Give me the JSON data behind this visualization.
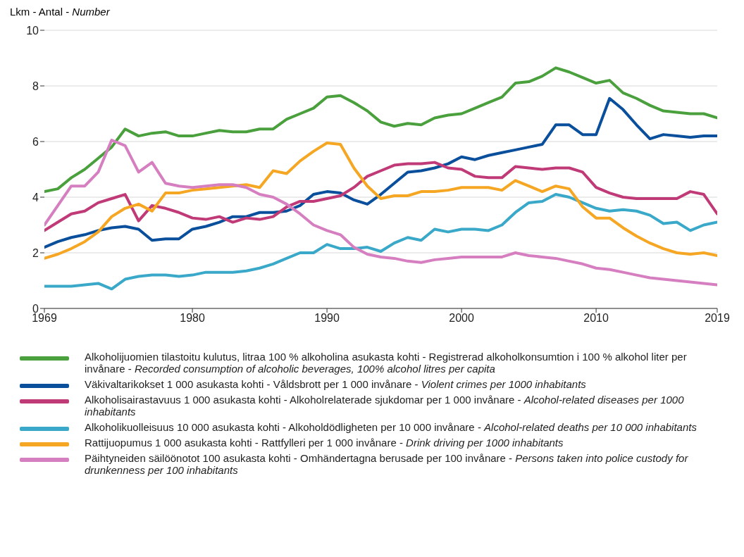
{
  "chart_data": {
    "type": "line",
    "ylabel": "Lkm - Antal - Number",
    "x": [
      1969,
      1970,
      1971,
      1972,
      1973,
      1974,
      1975,
      1976,
      1977,
      1978,
      1979,
      1980,
      1981,
      1982,
      1983,
      1984,
      1985,
      1986,
      1987,
      1988,
      1989,
      1990,
      1991,
      1992,
      1993,
      1994,
      1995,
      1996,
      1997,
      1998,
      1999,
      2000,
      2001,
      2002,
      2003,
      2004,
      2005,
      2006,
      2007,
      2008,
      2009,
      2010,
      2011,
      2012,
      2013,
      2014,
      2015,
      2016,
      2017,
      2018,
      2019
    ],
    "xlim": [
      1969,
      2019
    ],
    "xticks": [
      1969,
      1980,
      1990,
      2000,
      2010,
      2019
    ],
    "ylim": [
      0,
      10
    ],
    "yticks": [
      0,
      2,
      4,
      6,
      8,
      10
    ],
    "grid": "y",
    "legend": "bottom",
    "series": [
      {
        "name": "Alkoholijuomien tilastoitu kulutus, litraa 100 % alkoholina asukasta kohti - Registrerad alkoholkonsumtion i 100 % alkohol liter per invånare - Recorded consumption of alcoholic beverages, 100% alcohol litres per capita",
        "color": "#4aa03c",
        "values": [
          4.2,
          4.3,
          4.7,
          5.0,
          5.4,
          5.8,
          6.45,
          6.2,
          6.3,
          6.35,
          6.2,
          6.2,
          6.3,
          6.4,
          6.35,
          6.35,
          6.45,
          6.45,
          6.8,
          7.0,
          7.2,
          7.6,
          7.65,
          7.4,
          7.1,
          6.7,
          6.55,
          6.65,
          6.6,
          6.85,
          6.95,
          7.0,
          7.2,
          7.4,
          7.6,
          8.1,
          8.15,
          8.35,
          8.65,
          8.5,
          8.3,
          8.1,
          8.2,
          7.75,
          7.55,
          7.3,
          7.1,
          7.05,
          7.0,
          7.0,
          6.85
        ]
      },
      {
        "name": "Väkivaltarikokset 1 000 asukasta kohti - Våldsbrott per 1 000 invånare - Violent crimes per 1000 inhabitants",
        "color": "#0a4f9c",
        "values": [
          2.2,
          2.4,
          2.55,
          2.65,
          2.8,
          2.9,
          2.95,
          2.85,
          2.45,
          2.5,
          2.5,
          2.85,
          2.95,
          3.1,
          3.3,
          3.3,
          3.45,
          3.45,
          3.5,
          3.7,
          4.1,
          4.2,
          4.15,
          3.9,
          3.75,
          4.1,
          4.5,
          4.9,
          4.95,
          5.05,
          5.2,
          5.45,
          5.35,
          5.5,
          5.6,
          5.7,
          5.8,
          5.9,
          6.6,
          6.6,
          6.25,
          6.25,
          7.55,
          7.15,
          6.6,
          6.1,
          6.25,
          6.2,
          6.15,
          6.2,
          6.2
        ]
      },
      {
        "name": "Alkoholisairastavuus 1 000 asukasta kohti - Alkoholrelaterade sjukdomar per 1 000 invånare - Alcohol-related diseases per 1000 inhabitants",
        "color": "#c03a78",
        "values": [
          2.8,
          3.1,
          3.4,
          3.5,
          3.8,
          3.95,
          4.1,
          3.15,
          3.7,
          3.6,
          3.45,
          3.25,
          3.2,
          3.3,
          3.1,
          3.25,
          3.2,
          3.3,
          3.65,
          3.85,
          3.85,
          3.95,
          4.05,
          4.35,
          4.75,
          4.95,
          5.15,
          5.2,
          5.2,
          5.25,
          5.05,
          5.0,
          4.75,
          4.7,
          4.7,
          5.1,
          5.05,
          5.0,
          5.05,
          5.05,
          4.9,
          4.35,
          4.15,
          4.0,
          3.95,
          3.95,
          3.95,
          3.95,
          4.2,
          4.1,
          3.4
        ]
      },
      {
        "name": "Alkoholikuolleisuus 10 000 asukasta kohti - Alkoholdödligheten per 10 000 invånare - Alcohol-related deaths per 10 000 inhabitants",
        "color": "#3aa8c8",
        "values": [
          0.8,
          0.8,
          0.8,
          0.85,
          0.9,
          0.7,
          1.05,
          1.15,
          1.2,
          1.2,
          1.15,
          1.2,
          1.3,
          1.3,
          1.3,
          1.35,
          1.45,
          1.6,
          1.8,
          2.0,
          2.0,
          2.3,
          2.15,
          2.15,
          2.2,
          2.05,
          2.35,
          2.55,
          2.45,
          2.85,
          2.75,
          2.85,
          2.85,
          2.8,
          3.0,
          3.45,
          3.8,
          3.85,
          4.1,
          4.0,
          3.8,
          3.6,
          3.5,
          3.55,
          3.5,
          3.35,
          3.05,
          3.1,
          2.8,
          3.0,
          3.1
        ]
      },
      {
        "name": "Rattijuopumus 1 000 asukasta kohti - Rattfylleri per 1 000 invånare - Drink driving per 1000 inhabitants",
        "color": "#f5a623",
        "values": [
          1.8,
          1.95,
          2.15,
          2.4,
          2.75,
          3.3,
          3.6,
          3.75,
          3.5,
          4.15,
          4.15,
          4.25,
          4.3,
          4.35,
          4.4,
          4.45,
          4.35,
          4.95,
          4.85,
          5.3,
          5.65,
          5.95,
          5.9,
          5.05,
          4.4,
          3.95,
          4.05,
          4.05,
          4.2,
          4.2,
          4.25,
          4.35,
          4.35,
          4.35,
          4.25,
          4.6,
          4.4,
          4.2,
          4.4,
          4.3,
          3.65,
          3.25,
          3.25,
          2.9,
          2.6,
          2.35,
          2.15,
          2.0,
          1.95,
          2.0,
          1.9
        ]
      },
      {
        "name": "Päihtyneiden säilöönotot 100 asukasta kohti - Omhändertagna berusade per 100 invånare - Persons taken into police custody for drunkenness per 100 inhabitants",
        "color": "#d67fc0",
        "values": [
          3.0,
          3.7,
          4.4,
          4.4,
          4.9,
          6.05,
          5.85,
          4.9,
          5.25,
          4.5,
          4.4,
          4.35,
          4.4,
          4.45,
          4.45,
          4.35,
          4.1,
          4.0,
          3.75,
          3.4,
          3.0,
          2.8,
          2.65,
          2.2,
          1.95,
          1.85,
          1.8,
          1.7,
          1.65,
          1.75,
          1.8,
          1.85,
          1.85,
          1.85,
          1.85,
          2.0,
          1.9,
          1.85,
          1.8,
          1.7,
          1.6,
          1.45,
          1.4,
          1.3,
          1.2,
          1.1,
          1.05,
          1.0,
          0.95,
          0.9,
          0.85
        ]
      }
    ]
  }
}
